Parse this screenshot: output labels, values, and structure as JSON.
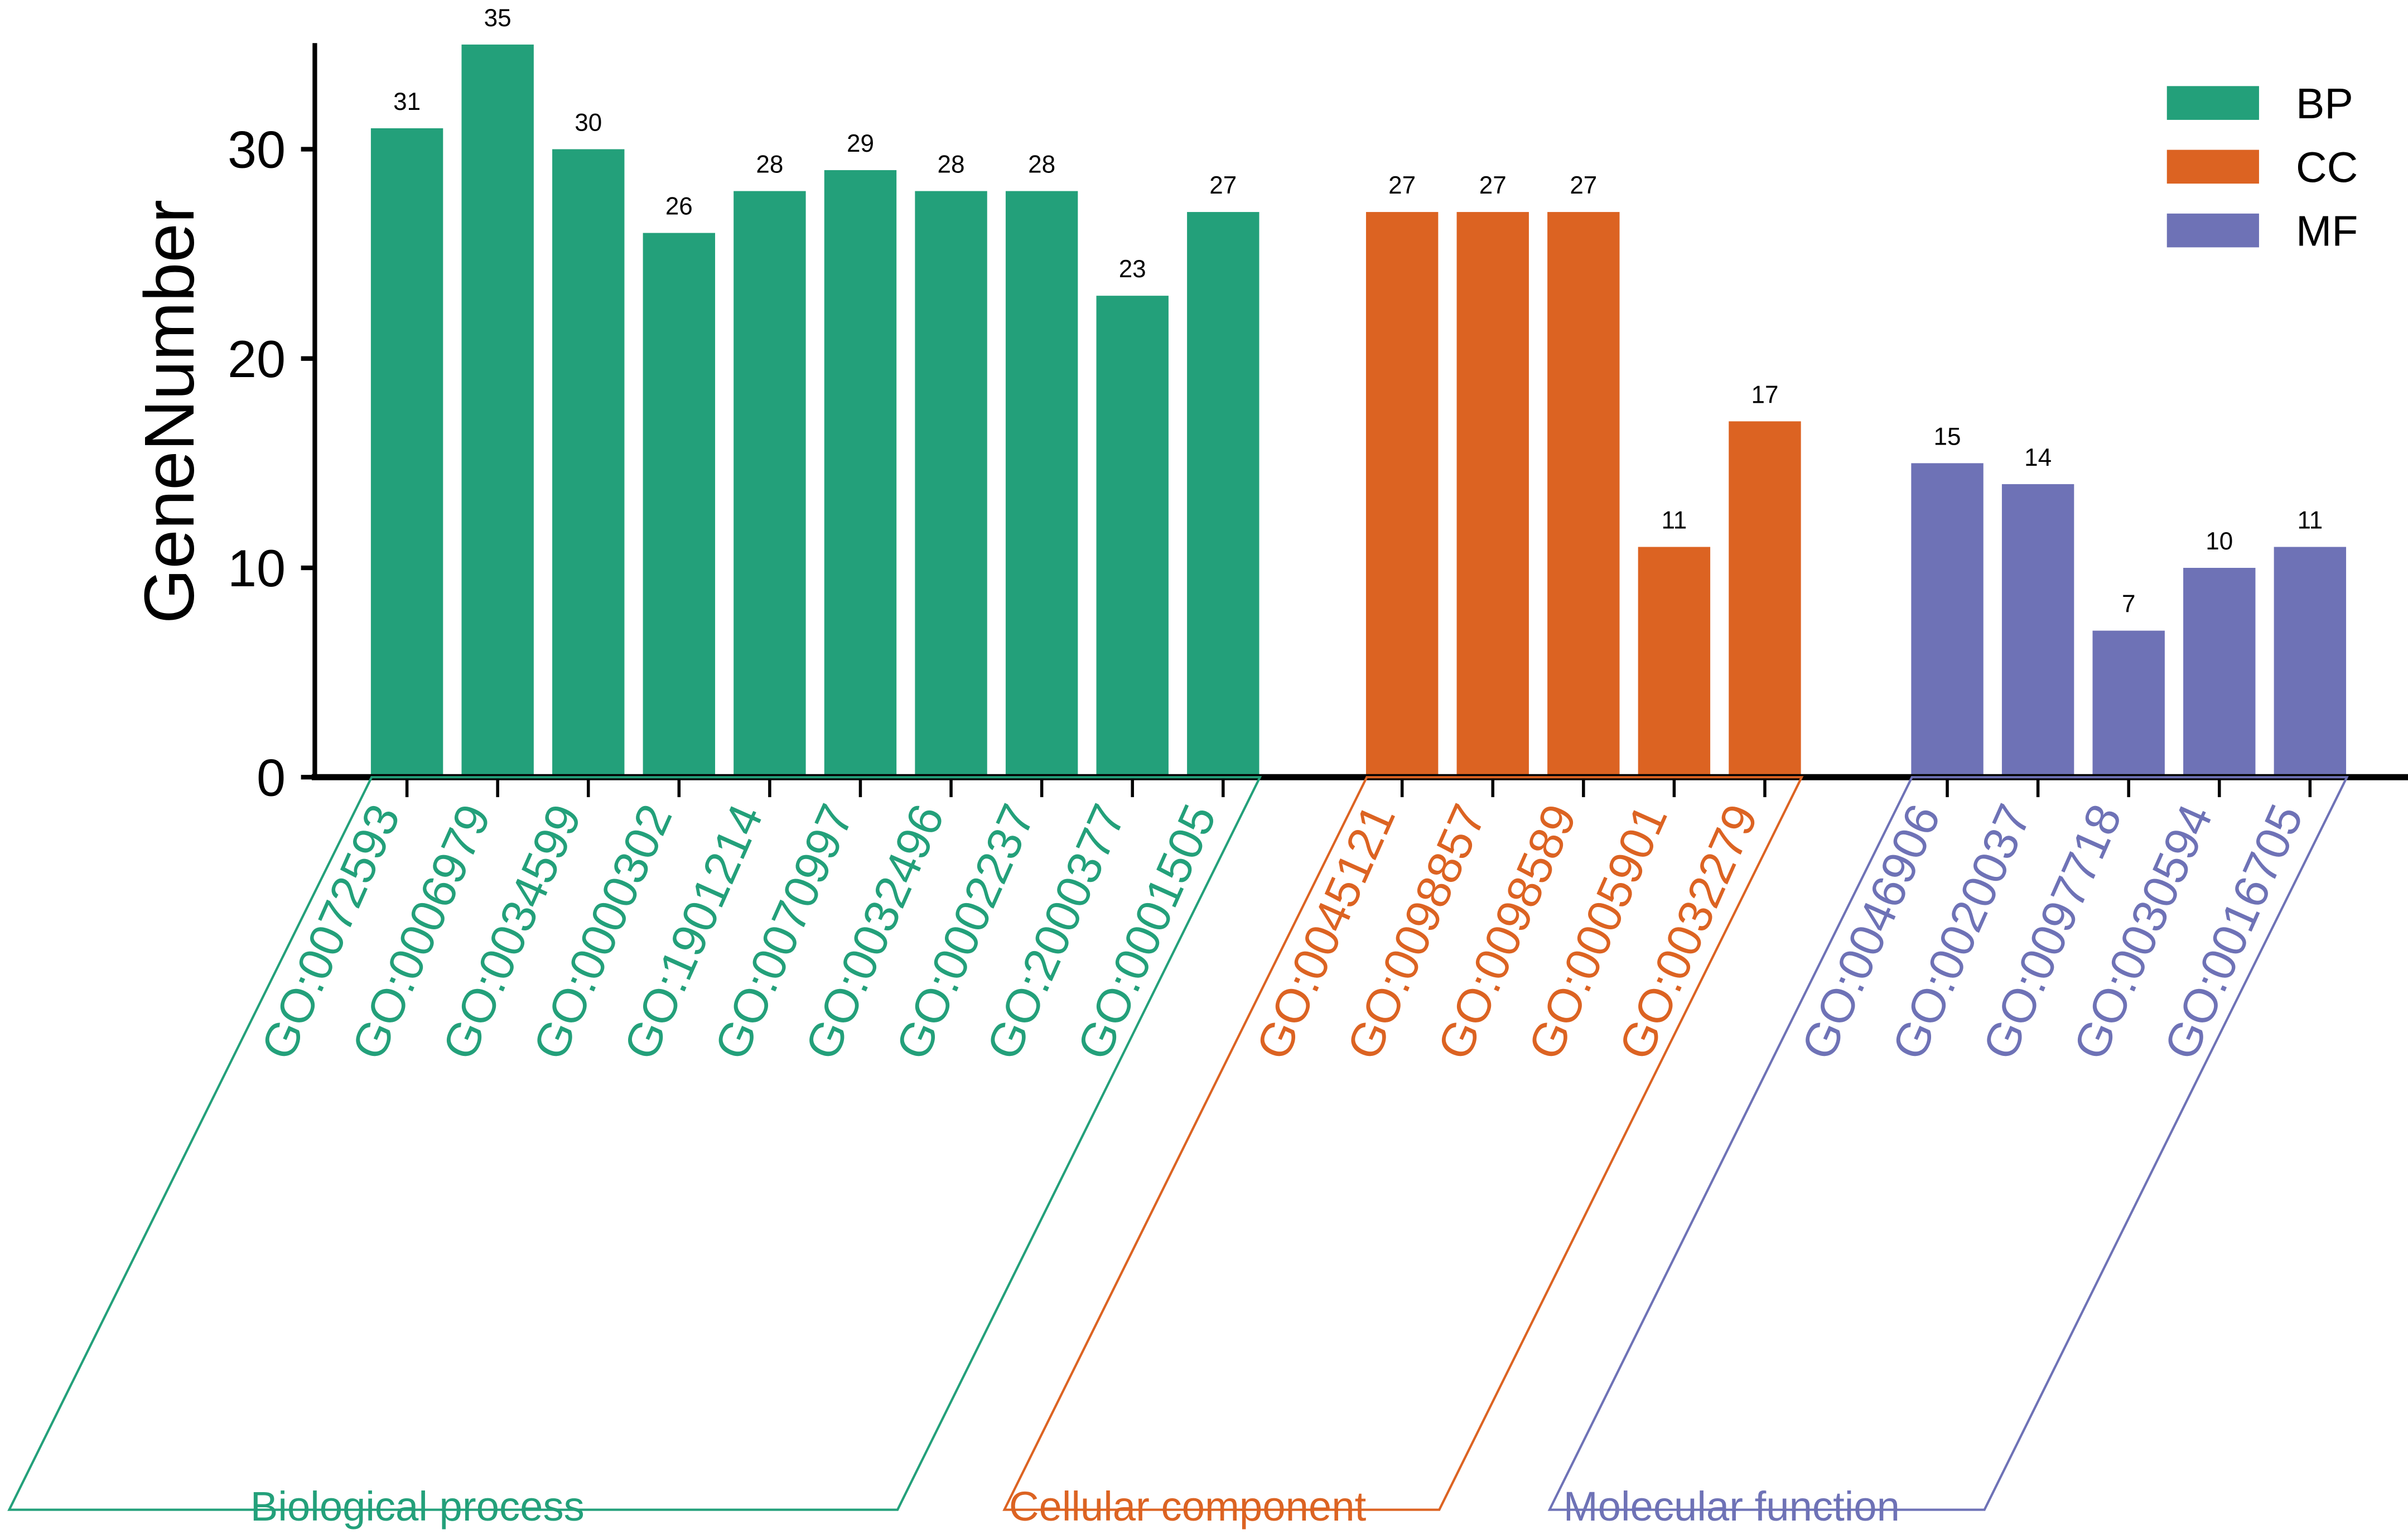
{
  "chart_data": {
    "type": "bar",
    "ylabel": "GeneNumber",
    "xlabel": "",
    "ylim": [
      0,
      35
    ],
    "yticks": [
      "0",
      "10",
      "20",
      "30"
    ],
    "grid": false,
    "legend_position": "top-right",
    "colors": {
      "BP": "#23a07a",
      "CC": "#dc6322",
      "MF": "#6e72b6"
    },
    "legend": [
      {
        "key": "BP",
        "label": "BP"
      },
      {
        "key": "CC",
        "label": "CC"
      },
      {
        "key": "MF",
        "label": "MF"
      }
    ],
    "groups": [
      {
        "key": "BP",
        "title": "Biological process",
        "categories": [
          "GO:0072593",
          "GO:0006979",
          "GO:0034599",
          "GO:0000302",
          "GO:1901214",
          "GO:0070997",
          "GO:0032496",
          "GO:0002237",
          "GO:2000377",
          "GO:0001505"
        ],
        "values": [
          31,
          35,
          30,
          26,
          28,
          29,
          28,
          28,
          23,
          27
        ]
      },
      {
        "key": "CC",
        "title": "Cellular component",
        "categories": [
          "GO:0045121",
          "GO:0098857",
          "GO:0098589",
          "GO:0005901",
          "GO:0032279"
        ],
        "values": [
          27,
          27,
          27,
          11,
          17
        ]
      },
      {
        "key": "MF",
        "title": "Molecular function",
        "categories": [
          "GO:0046906",
          "GO:0020037",
          "GO:0097718",
          "GO:0030594",
          "GO:0016705"
        ],
        "values": [
          15,
          14,
          7,
          10,
          11
        ]
      }
    ]
  }
}
